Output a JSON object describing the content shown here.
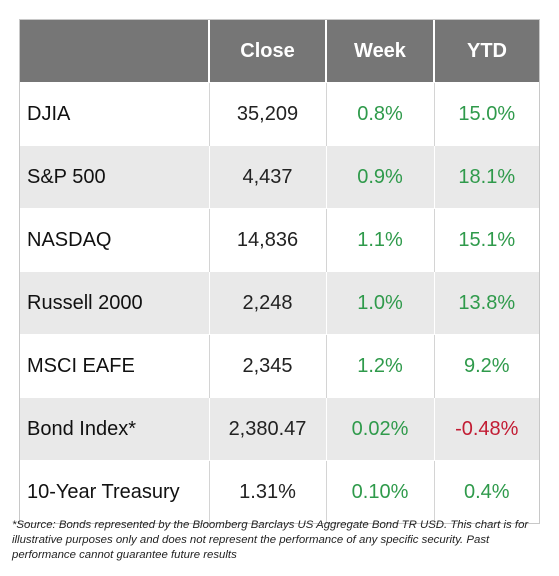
{
  "table": {
    "headers": [
      "",
      "Close",
      "Week",
      "YTD"
    ],
    "rows": [
      {
        "name": "DJIA",
        "close": "35,209",
        "week": "0.8%",
        "ytd": "15.0%",
        "ytd_negative": false
      },
      {
        "name": "S&P 500",
        "close": "4,437",
        "week": "0.9%",
        "ytd": "18.1%",
        "ytd_negative": false
      },
      {
        "name": "NASDAQ",
        "close": "14,836",
        "week": "1.1%",
        "ytd": "15.1%",
        "ytd_negative": false
      },
      {
        "name": "Russell 2000",
        "close": "2,248",
        "week": "1.0%",
        "ytd": "13.8%",
        "ytd_negative": false
      },
      {
        "name": "MSCI EAFE",
        "close": "2,345",
        "week": "1.2%",
        "ytd": "9.2%",
        "ytd_negative": false
      },
      {
        "name": "Bond Index*",
        "close": "2,380.47",
        "week": "0.02%",
        "ytd": "-0.48%",
        "ytd_negative": true
      },
      {
        "name": "10-Year Treasury",
        "close": "1.31%",
        "week": "0.10%",
        "ytd": "0.4%",
        "ytd_negative": false
      }
    ]
  },
  "colors": {
    "header_bg": "#767676",
    "positive": "#2f9a4b",
    "negative": "#c21c33",
    "row_alt_bg": "#e9e9e9"
  },
  "footnote": "*Source: Bonds represented by the Bloomberg Barclays US Aggregate Bond TR USD.  This chart is for illustrative purposes only and does not represent the performance of any specific security. Past performance cannot guarantee future results"
}
